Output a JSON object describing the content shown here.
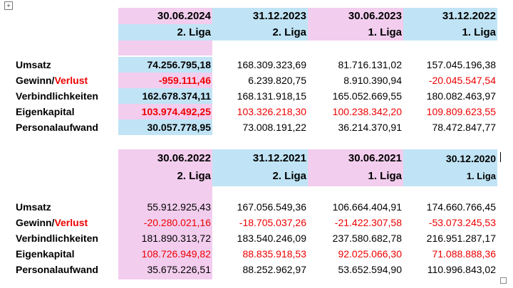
{
  "colors": {
    "pink": "#f2cdee",
    "blue": "#c0e4f5",
    "red": "#ee0000"
  },
  "row_labels": {
    "revenue": "Umsatz",
    "profit_part1": "Gewinn/",
    "profit_part2": "Verlust",
    "liabilities": "Verbindlichkeiten",
    "equity": "Eigenkapital",
    "personnel": "Personalaufwand"
  },
  "table1": {
    "columns": [
      {
        "date": "30.06.2024",
        "league": "2. Liga",
        "revenue": "74.256.795,18",
        "profit": "-959.111,46",
        "liabilities": "162.678.374,11",
        "equity": "103.974.492,25",
        "personnel": "30.057.778,95"
      },
      {
        "date": "31.12.2023",
        "league": "2. Liga",
        "revenue": "168.309.323,69",
        "profit": "6.239.820,75",
        "liabilities": "168.131.918,15",
        "equity": "103.326.218,30",
        "personnel": "73.008.191,22"
      },
      {
        "date": "30.06.2023",
        "league": "1. Liga",
        "revenue": "81.716.131,02",
        "profit": "8.910.390,94",
        "liabilities": "165.052.669,55",
        "equity": "100.238.342,20",
        "personnel": "36.214.370,91"
      },
      {
        "date": "31.12.2022",
        "league": "1. Liga",
        "revenue": "157.045.196,38",
        "profit": "-20.045.547,54",
        "liabilities": "180.082.463,97",
        "equity": "109.809.623,55",
        "personnel": "78.472.847,77"
      }
    ]
  },
  "table2": {
    "columns": [
      {
        "date": "30.06.2022",
        "league": "2. Liga",
        "revenue": "55.912.925,43",
        "profit": "-20.280.021,16",
        "liabilities": "181.890.313,72",
        "equity": "108.726.949,82",
        "personnel": "35.675.226,51"
      },
      {
        "date": "31.12.2021",
        "league": "2. Liga",
        "revenue": "167.056.549,36",
        "profit": "-18.705.037,26",
        "liabilities": "183.540.246,09",
        "equity": "88.835.918,53",
        "personnel": "88.252.962,97"
      },
      {
        "date": "30.06.2021",
        "league": "1. Liga",
        "revenue": "106.664.404,91",
        "profit": "-21.422.307,58",
        "liabilities": "237.580.682,78",
        "equity": "92.025.066,30",
        "personnel": "53.652.594,90"
      },
      {
        "date": "30.12.2020",
        "league": "1. Liga",
        "revenue": "174.660.766,45",
        "profit": "-53.073.245,53",
        "liabilities": "216.951.287,17",
        "equity": "71.088.888,36",
        "personnel": "110.996.843,02"
      }
    ]
  }
}
